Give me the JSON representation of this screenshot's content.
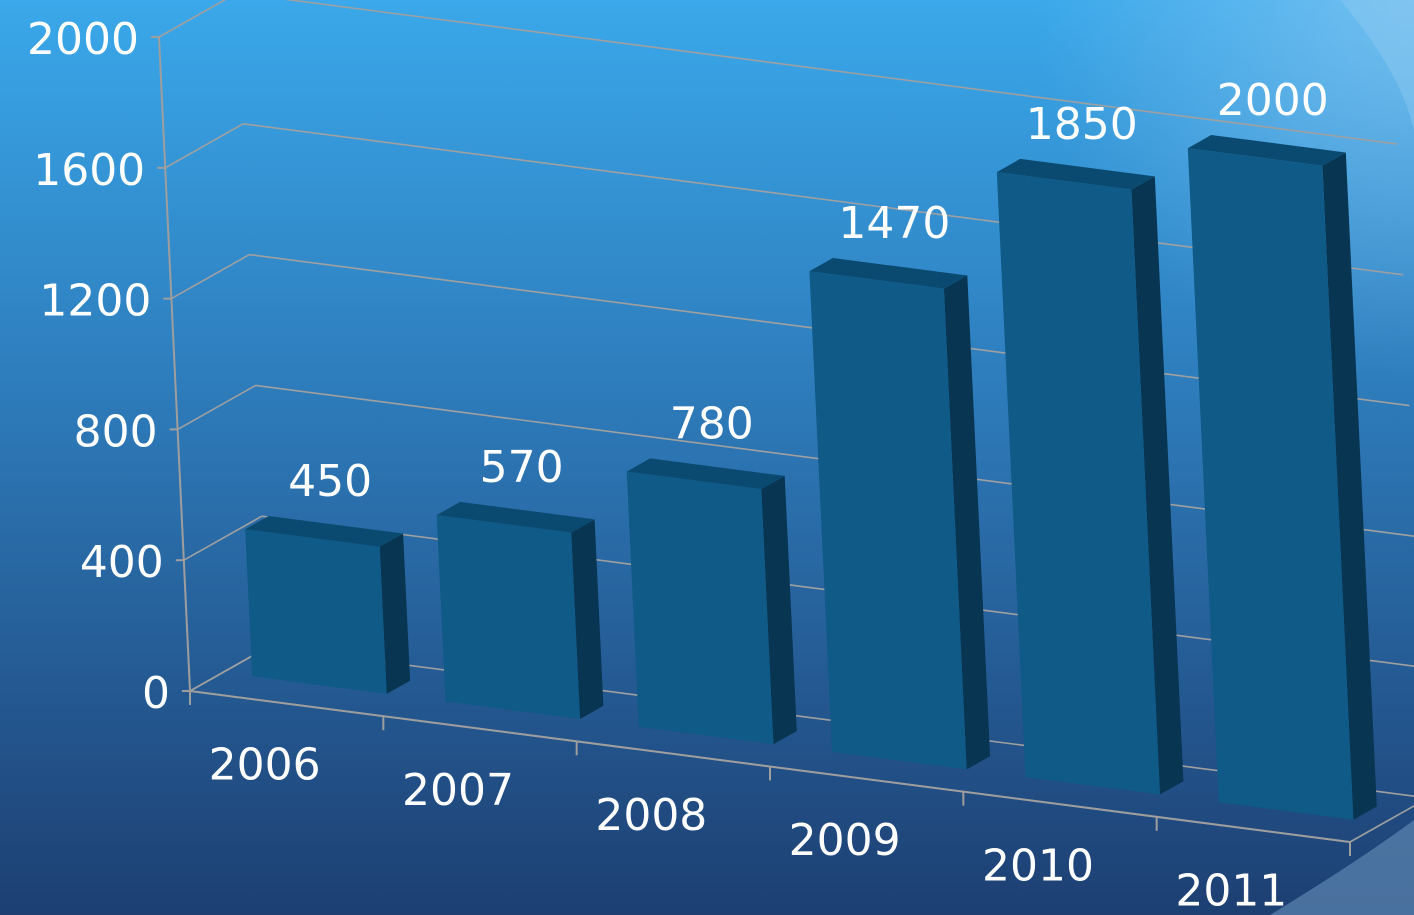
{
  "chart_data": {
    "type": "bar",
    "categories": [
      "2006",
      "2007",
      "2008",
      "2009",
      "2010",
      "2011"
    ],
    "values": [
      450,
      570,
      780,
      1470,
      1850,
      2000
    ],
    "title": "",
    "xlabel": "",
    "ylabel": "",
    "ylim": [
      0,
      2000
    ],
    "yticks": [
      "0",
      "400",
      "800",
      "1200",
      "1600",
      "2000"
    ],
    "data_labels": [
      "450",
      "570",
      "780",
      "1470",
      "1850",
      "2000"
    ],
    "grid": true,
    "legend": "none",
    "colors": {
      "background_top": "#3aa8ea",
      "background_bottom": "#1d3f72",
      "bar_front": "#0f5a86",
      "bar_side": "#083552",
      "bar_top": "#0b4a70",
      "axis": "#9e9e9e",
      "grid": "#a0a0a0",
      "text": "#ffffff"
    }
  }
}
